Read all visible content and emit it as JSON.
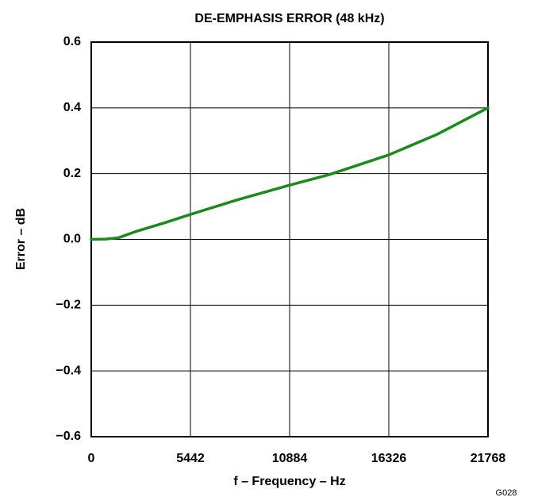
{
  "chart_data": {
    "type": "line",
    "title": "DE-EMPHASIS ERROR (48 kHz)",
    "x_label": "f – Frequency – Hz",
    "y_label": "Error – dB",
    "annotation": "G028",
    "x": [
      0,
      800,
      1500,
      2500,
      4000,
      5442,
      8000,
      10884,
      13060,
      16326,
      19000,
      21768
    ],
    "series": [
      {
        "name": "Error",
        "color": "#1a8a1a",
        "values": [
          0,
          0.001,
          0.005,
          0.025,
          0.05,
          0.076,
          0.12,
          0.165,
          0.197,
          0.257,
          0.32,
          0.4
        ]
      }
    ],
    "xlim": [
      0,
      21768
    ],
    "xticks": [
      0,
      5442,
      10884,
      16326,
      21768
    ],
    "ylim": [
      -0.6,
      0.6
    ],
    "yticks": [
      {
        "value": -0.6,
        "label": "−0.6"
      },
      {
        "value": -0.4,
        "label": "−0.4"
      },
      {
        "value": -0.2,
        "label": "−0.2"
      },
      {
        "value": 0,
        "label": "0.0"
      },
      0.2,
      0.4,
      0.6
    ],
    "grid": true
  }
}
